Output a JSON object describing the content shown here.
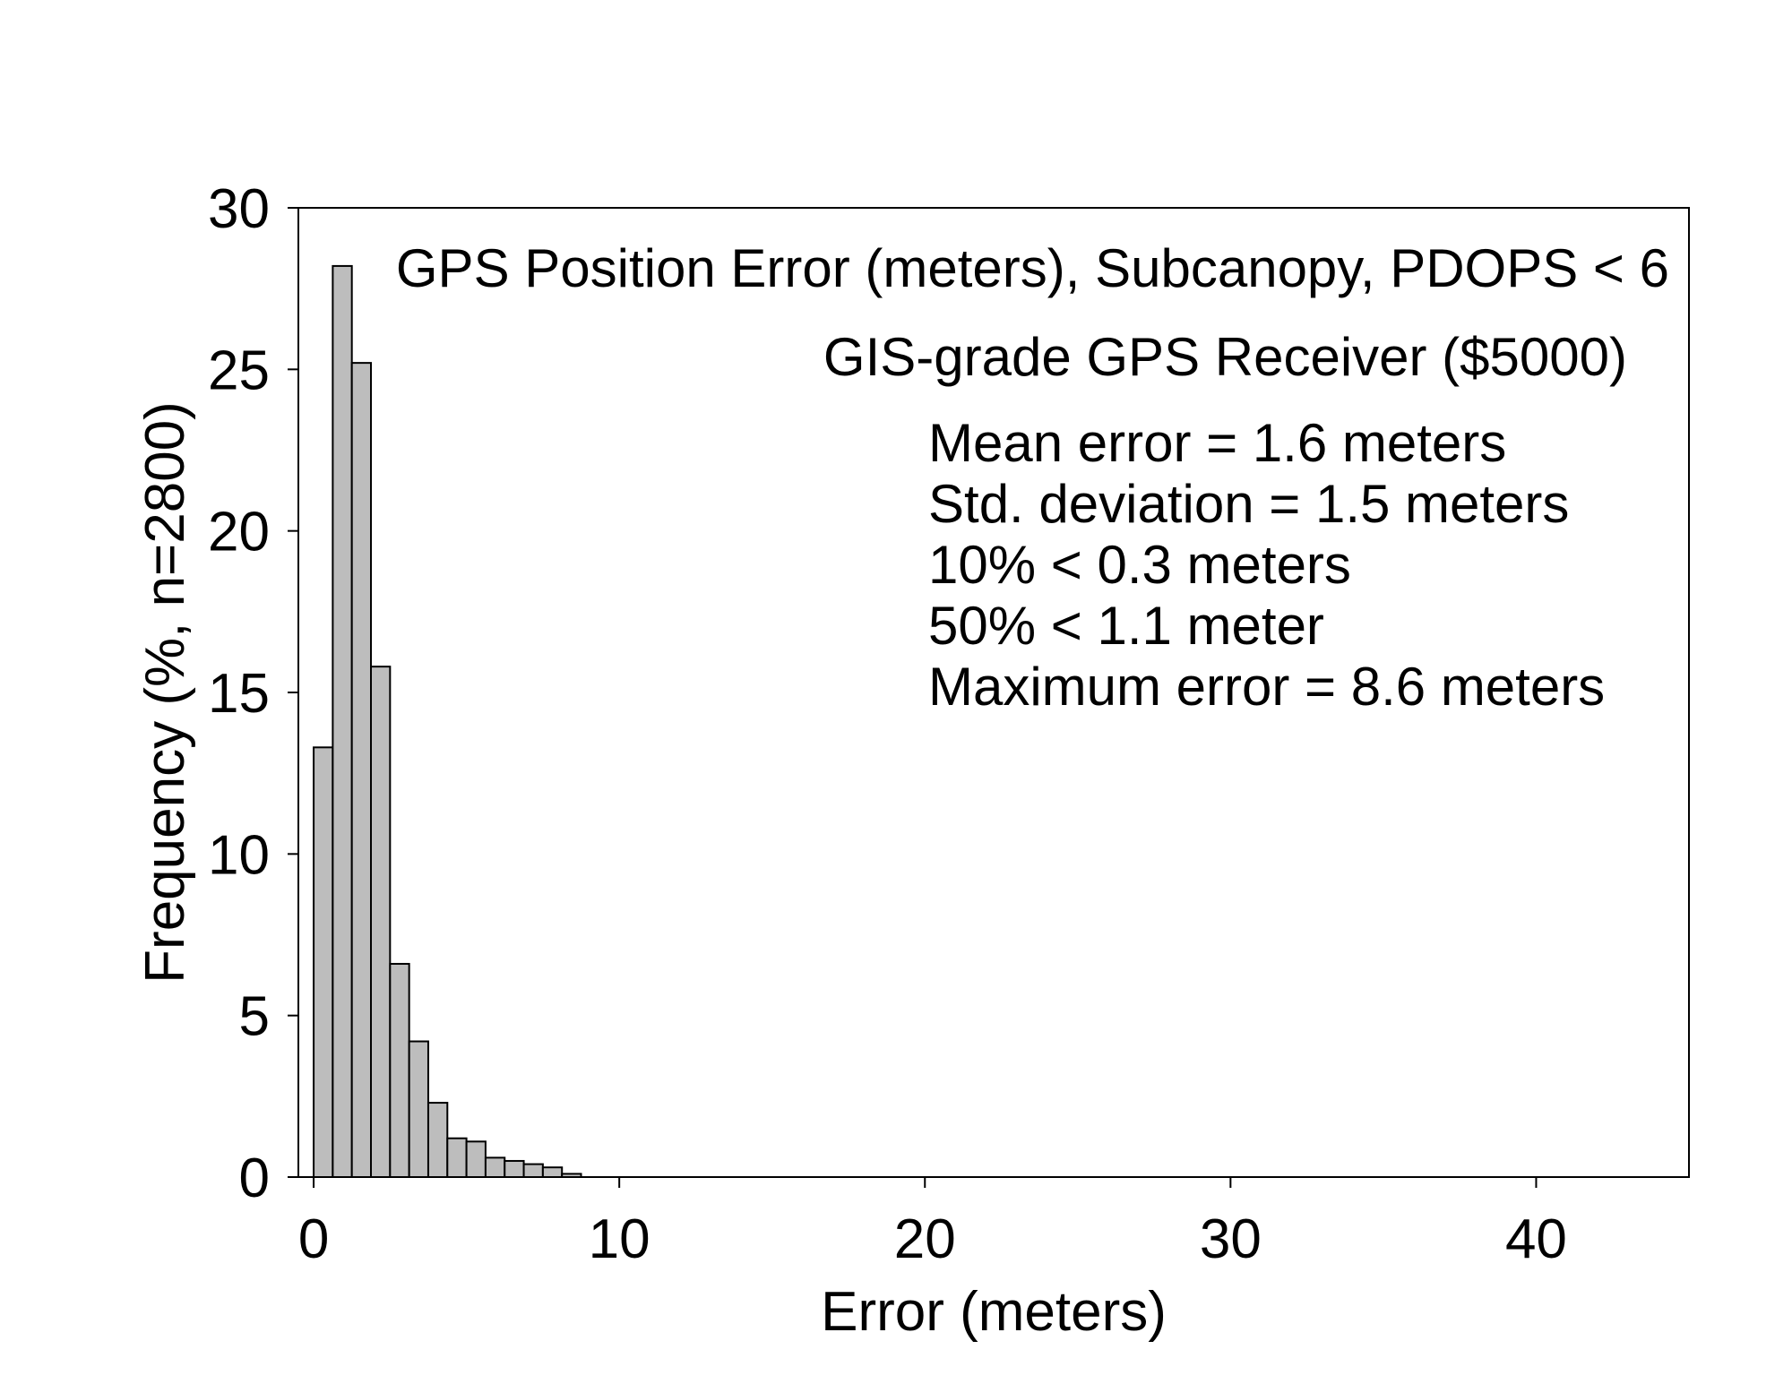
{
  "chart_data": {
    "type": "bar",
    "xlabel": "Error (meters)",
    "ylabel": "Frequency (%, n=2800)",
    "xlim": [
      -0.5,
      45
    ],
    "ylim": [
      0,
      30
    ],
    "xticks": [
      "0",
      "10",
      "20",
      "30",
      "40"
    ],
    "yticks": [
      "0",
      "5",
      "10",
      "15",
      "20",
      "25",
      "30"
    ],
    "bin_width": 0.625,
    "bins": [
      {
        "x": 0.0,
        "value": 13.3
      },
      {
        "x": 0.625,
        "value": 28.2
      },
      {
        "x": 1.25,
        "value": 25.2
      },
      {
        "x": 1.875,
        "value": 15.8
      },
      {
        "x": 2.5,
        "value": 6.6
      },
      {
        "x": 3.125,
        "value": 4.2
      },
      {
        "x": 3.75,
        "value": 2.3
      },
      {
        "x": 4.375,
        "value": 1.2
      },
      {
        "x": 5.0,
        "value": 1.1
      },
      {
        "x": 5.625,
        "value": 0.6
      },
      {
        "x": 6.25,
        "value": 0.5
      },
      {
        "x": 6.875,
        "value": 0.4
      },
      {
        "x": 7.5,
        "value": 0.3
      },
      {
        "x": 8.125,
        "value": 0.1
      }
    ],
    "grid": false,
    "annotations": [
      "GPS Position Error (meters), Subcanopy, PDOPS < 6",
      "GIS-grade GPS Receiver ($5000)",
      "Mean error = 1.6 meters",
      "Std. deviation = 1.5 meters",
      "10% < 0.3 meters",
      "50% < 1.1 meter",
      "Maximum error = 8.6 meters"
    ],
    "colors": {
      "bar_fill": "#bdbdbd",
      "bar_stroke": "#000000",
      "axis": "#000000"
    }
  }
}
